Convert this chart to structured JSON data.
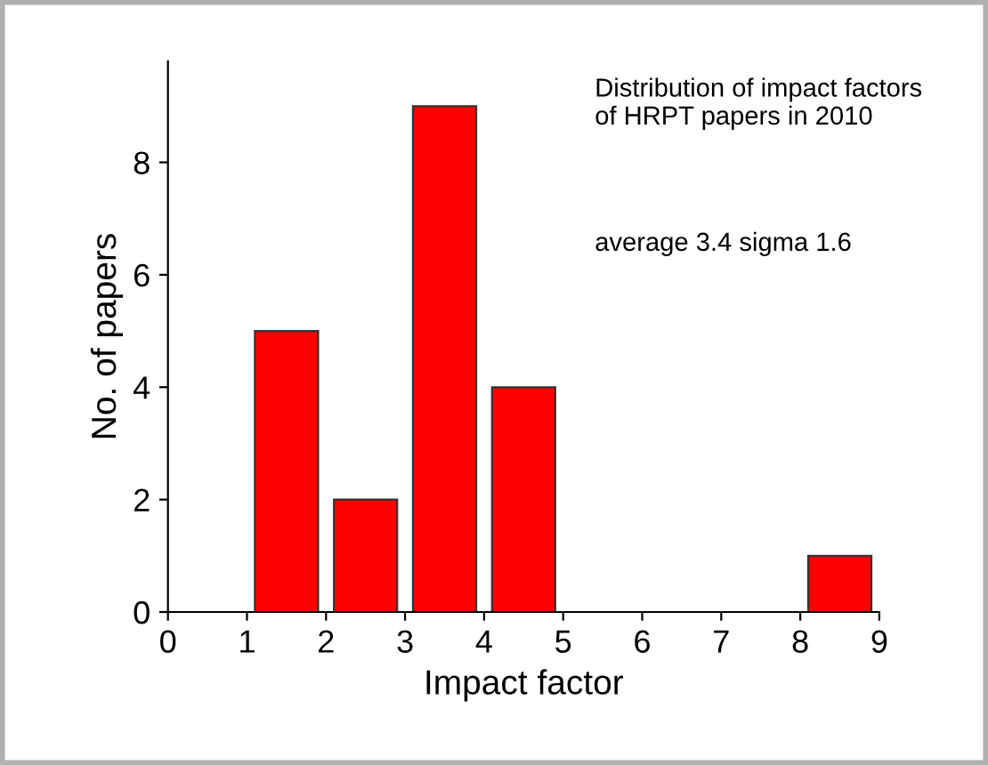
{
  "chart_data": {
    "type": "histogram",
    "xlabel": "Impact factor",
    "ylabel": "No. of papers",
    "bins": [
      1,
      2,
      3,
      4,
      5,
      6,
      7,
      8,
      9
    ],
    "values": [
      5,
      2,
      9,
      4,
      0,
      0,
      0,
      1
    ],
    "color": "#ff0000",
    "xlim": [
      0,
      9
    ],
    "ylim": [
      0,
      9.8
    ],
    "xticks": [
      0,
      1,
      2,
      3,
      4,
      5,
      6,
      7,
      8,
      9
    ],
    "yticks": [
      0,
      2,
      4,
      6,
      8
    ],
    "grid": false,
    "annotations": [
      "Distribution of impact factors\nof HRPT papers in 2010",
      "average 3.4 sigma 1.6"
    ]
  }
}
